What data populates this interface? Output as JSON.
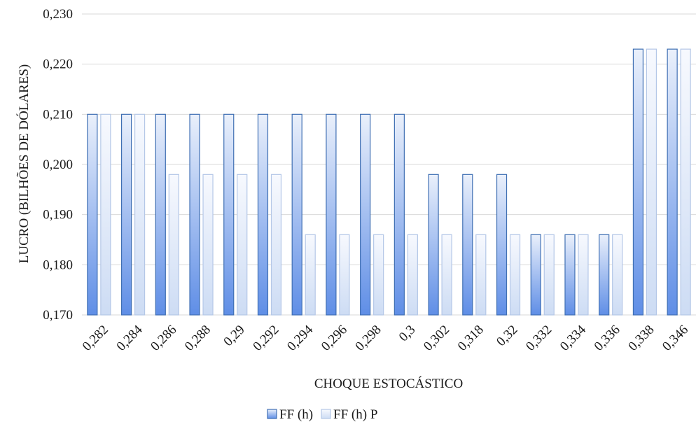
{
  "chart_data": {
    "type": "bar",
    "title": "",
    "xlabel": "CHOQUE ESTOCÁSTICO",
    "ylabel": "LUCRO (BILHÕES DE DÓLARES)",
    "ylim": [
      0.17,
      0.23
    ],
    "yticks": [
      "0,170",
      "0,180",
      "0,190",
      "0,200",
      "0,210",
      "0,220",
      "0,230"
    ],
    "grid": true,
    "legend_position": "bottom",
    "categories": [
      "0,282",
      "0,284",
      "0,286",
      "0,288",
      "0,29",
      "0,292",
      "0,294",
      "0,296",
      "0,298",
      "0,3",
      "0,302",
      "0,318",
      "0,32",
      "0,332",
      "0,334",
      "0,336",
      "0,338",
      "0,346"
    ],
    "series": [
      {
        "name": "FF (h)",
        "color_top": "#eaf0fb",
        "color_bottom": "#5f8ee6",
        "border": "#3f6fb3",
        "values": [
          0.21,
          0.21,
          0.21,
          0.21,
          0.21,
          0.21,
          0.21,
          0.21,
          0.21,
          0.21,
          0.198,
          0.198,
          0.198,
          0.186,
          0.186,
          0.186,
          0.223,
          0.223
        ]
      },
      {
        "name": "FF (h) P",
        "color_top": "#f7f9fe",
        "color_bottom": "#cddcf4",
        "border": "#b4c7e7",
        "values": [
          0.21,
          0.21,
          0.198,
          0.198,
          0.198,
          0.198,
          0.186,
          0.186,
          0.186,
          0.186,
          0.186,
          0.186,
          0.186,
          0.186,
          0.186,
          0.186,
          0.223,
          0.223
        ]
      }
    ]
  }
}
